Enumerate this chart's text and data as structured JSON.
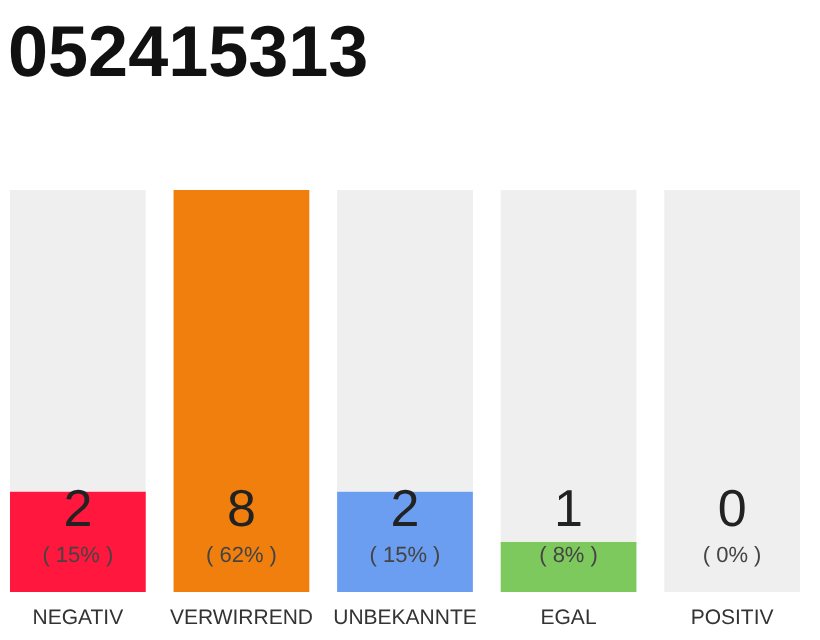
{
  "chart_data": {
    "type": "bar",
    "title": "052415313",
    "categories": [
      "NEGATIV",
      "VERWIRREND",
      "UNBEKANNTE",
      "EGAL",
      "POSITIV"
    ],
    "stacked": true,
    "series": [
      {
        "colors": [
          "#ff173d",
          "#f07f0e",
          "#6b9ef0",
          "#7dc95e",
          "#cccccc"
        ],
        "values": [
          2,
          8,
          2,
          1,
          0
        ],
        "value_labels": [
          "2",
          "8",
          "2",
          "1",
          null
        ]
      },
      {
        "color": "#efefef",
        "values": [
          6,
          0,
          6,
          7,
          8
        ]
      }
    ],
    "ylim": [
      0,
      8
    ],
    "annotations": [
      "( 15% )",
      "( 62% )",
      "( 15% )",
      "( 8% )",
      "( 0% )",
      "0"
    ]
  }
}
